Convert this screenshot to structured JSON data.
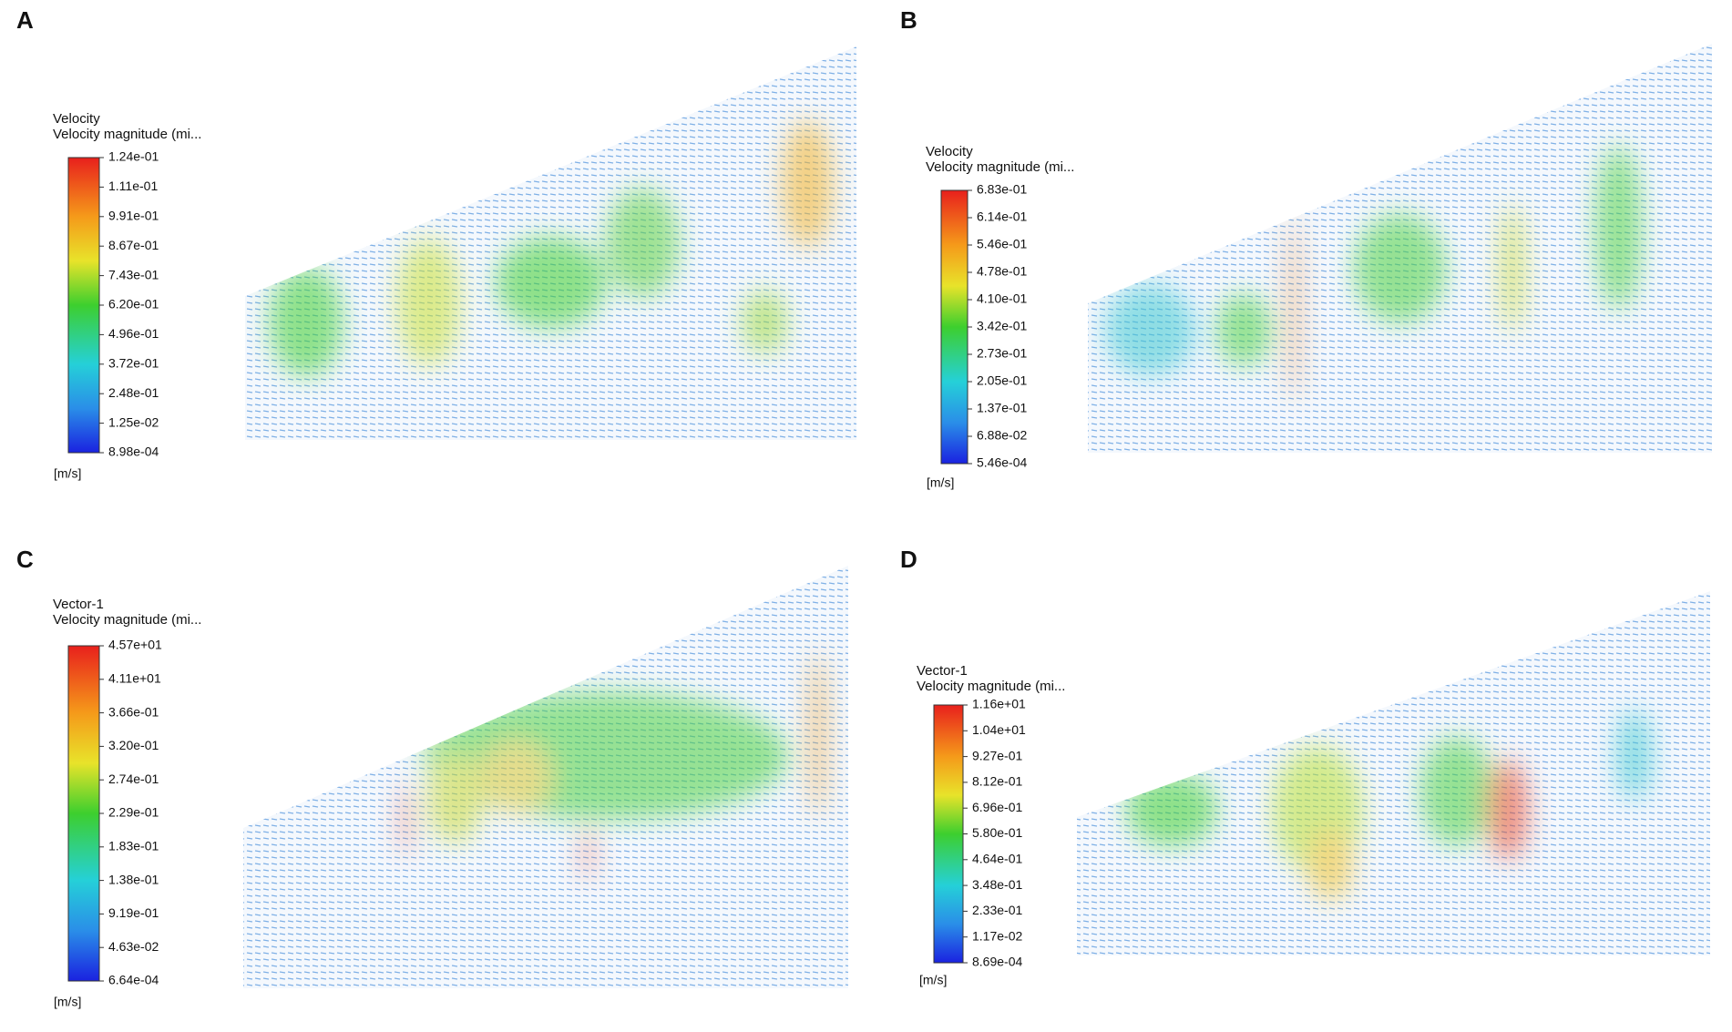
{
  "panels": [
    {
      "label": "A",
      "legend_title": "Velocity",
      "legend_subtitle": "Velocity magnitude (mi...",
      "ticks": [
        "1.24e-01",
        "1.11e-01",
        "9.91e-01",
        "8.67e-01",
        "7.43e-01",
        "6.20e-01",
        "4.96e-01",
        "3.72e-01",
        "2.48e-01",
        "1.25e-02",
        "8.98e-04"
      ],
      "unit": "[m/s]"
    },
    {
      "label": "B",
      "legend_title": "Velocity",
      "legend_subtitle": "Velocity magnitude (mi...",
      "ticks": [
        "6.83e-01",
        "6.14e-01",
        "5.46e-01",
        "4.78e-01",
        "4.10e-01",
        "3.42e-01",
        "2.73e-01",
        "2.05e-01",
        "1.37e-01",
        "6.88e-02",
        "5.46e-04"
      ],
      "unit": "[m/s]"
    },
    {
      "label": "C",
      "legend_title": "Vector-1",
      "legend_subtitle": "Velocity magnitude (mi...",
      "ticks": [
        "4.57e+01",
        "4.11e+01",
        "3.66e-01",
        "3.20e-01",
        "2.74e-01",
        "2.29e-01",
        "1.83e-01",
        "1.38e-01",
        "9.19e-01",
        "4.63e-02",
        "6.64e-04"
      ],
      "unit": "[m/s]"
    },
    {
      "label": "D",
      "legend_title": "Vector-1",
      "legend_subtitle": "Velocity magnitude (mi...",
      "ticks": [
        "1.16e+01",
        "1.04e+01",
        "9.27e-01",
        "8.12e-01",
        "6.96e-01",
        "5.80e-01",
        "4.64e-01",
        "3.48e-01",
        "2.33e-01",
        "1.17e-02",
        "8.69e-04"
      ],
      "unit": "[m/s]"
    }
  ]
}
